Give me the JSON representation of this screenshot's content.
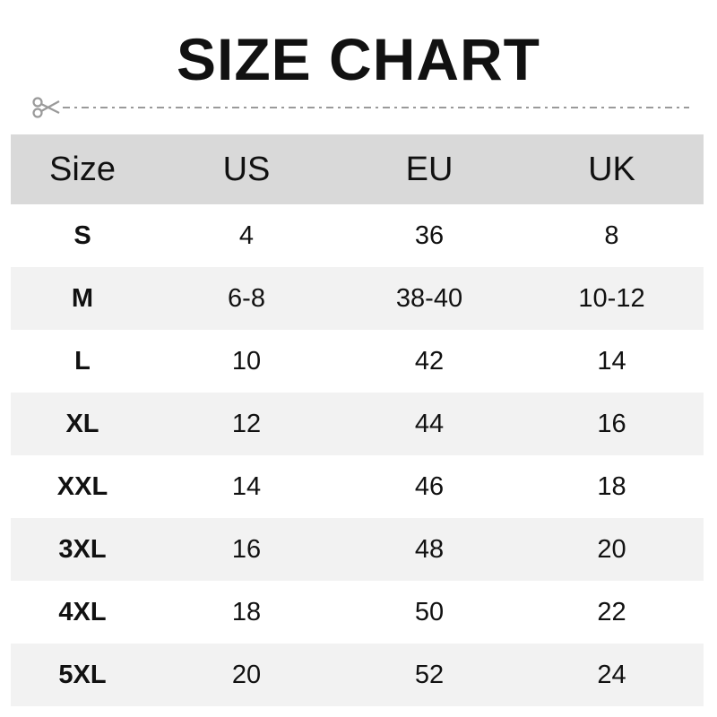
{
  "title": "SIZE CHART",
  "icons": {
    "cut": "scissors-icon"
  },
  "colors": {
    "header_bg": "#d9d9d9",
    "alt_row_bg": "#f2f2f2",
    "dash": "#9a9a9a"
  },
  "table": {
    "headers": [
      "Size",
      "US",
      "EU",
      "UK"
    ],
    "rows": [
      [
        "S",
        "4",
        "36",
        "8"
      ],
      [
        "M",
        "6-8",
        "38-40",
        "10-12"
      ],
      [
        "L",
        "10",
        "42",
        "14"
      ],
      [
        "XL",
        "12",
        "44",
        "16"
      ],
      [
        "XXL",
        "14",
        "46",
        "18"
      ],
      [
        "3XL",
        "16",
        "48",
        "20"
      ],
      [
        "4XL",
        "18",
        "50",
        "22"
      ],
      [
        "5XL",
        "20",
        "52",
        "24"
      ]
    ]
  }
}
